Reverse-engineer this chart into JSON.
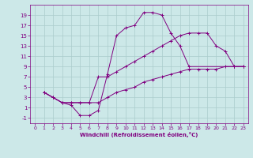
{
  "xlabel": "Windchill (Refroidissement éolien,°C)",
  "bg_color": "#cce8e8",
  "line_color": "#800080",
  "grid_color": "#aacccc",
  "xlim": [
    -0.5,
    23.5
  ],
  "ylim": [
    -2,
    21
  ],
  "xticks": [
    0,
    1,
    2,
    3,
    4,
    5,
    6,
    7,
    8,
    9,
    10,
    11,
    12,
    13,
    14,
    15,
    16,
    17,
    18,
    19,
    20,
    21,
    22,
    23
  ],
  "yticks": [
    -1,
    1,
    3,
    5,
    7,
    9,
    11,
    13,
    15,
    17,
    19
  ],
  "curve1_x": [
    1,
    2,
    3,
    4,
    5,
    6,
    7,
    8,
    9,
    10,
    11,
    12,
    13,
    14,
    15,
    16,
    17,
    22,
    23
  ],
  "curve1_y": [
    4,
    3,
    2,
    1.5,
    -0.5,
    -0.5,
    0.5,
    7.5,
    15,
    16.5,
    17,
    19.5,
    19.5,
    19,
    15.5,
    13,
    9,
    9,
    9
  ],
  "curve2_x": [
    1,
    2,
    3,
    4,
    5,
    6,
    7,
    8,
    9,
    10,
    11,
    12,
    13,
    14,
    15,
    16,
    17,
    18,
    19,
    20,
    21,
    22,
    23
  ],
  "curve2_y": [
    4,
    3,
    2,
    2,
    2,
    2,
    7,
    7,
    8,
    9,
    10,
    11,
    12,
    13,
    14,
    15,
    15.5,
    15.5,
    15.5,
    13,
    12,
    9,
    9
  ],
  "curve3_x": [
    1,
    2,
    3,
    4,
    5,
    6,
    7,
    8,
    9,
    10,
    11,
    12,
    13,
    14,
    15,
    16,
    17,
    18,
    19,
    20,
    21,
    22,
    23
  ],
  "curve3_y": [
    4,
    3,
    2,
    2,
    2,
    2,
    2,
    3,
    4,
    4.5,
    5,
    6,
    6.5,
    7,
    7.5,
    8,
    8.5,
    8.5,
    8.5,
    8.5,
    9,
    9,
    9
  ]
}
